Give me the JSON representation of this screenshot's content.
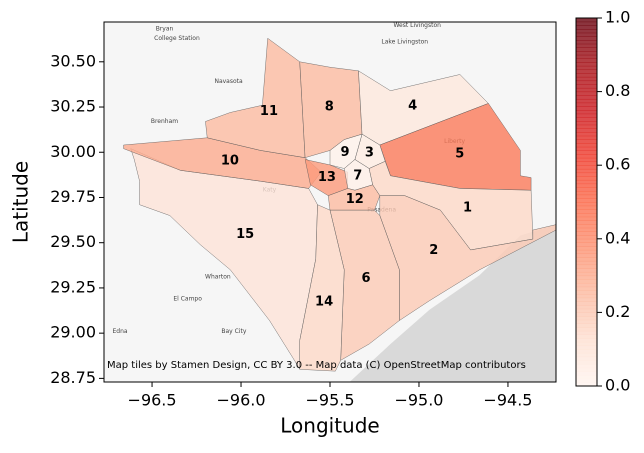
{
  "chart_data": {
    "type": "choropleth",
    "xlabel": "Longitude",
    "ylabel": "Latitude",
    "xlim": [
      -96.77,
      -94.23
    ],
    "ylim": [
      28.73,
      30.72
    ],
    "xticks": [
      {
        "value": -96.5,
        "label": "−96.5"
      },
      {
        "value": -96.0,
        "label": "−96.0"
      },
      {
        "value": -95.5,
        "label": "−95.5"
      },
      {
        "value": -95.0,
        "label": "−95.0"
      },
      {
        "value": -94.5,
        "label": "−94.5"
      }
    ],
    "yticks": [
      {
        "value": 28.75,
        "label": "28.75"
      },
      {
        "value": 29.0,
        "label": "29.00"
      },
      {
        "value": 29.25,
        "label": "29.25"
      },
      {
        "value": 29.5,
        "label": "29.50"
      },
      {
        "value": 29.75,
        "label": "29.75"
      },
      {
        "value": 30.0,
        "label": "30.00"
      },
      {
        "value": 30.25,
        "label": "30.25"
      },
      {
        "value": 30.5,
        "label": "30.50"
      }
    ],
    "colormap": "Reds",
    "clim": [
      0,
      1
    ],
    "cticks": [
      {
        "value": 0,
        "label": "0.0"
      },
      {
        "value": 0.2,
        "label": "0.2"
      },
      {
        "value": 0.4,
        "label": "0.4"
      },
      {
        "value": 0.6,
        "label": "0.6"
      },
      {
        "value": 0.8,
        "label": "0.8"
      },
      {
        "value": 1,
        "label": "1.0"
      }
    ],
    "attribution": "Map tiles by Stamen Design, CC BY 3.0 -- Map data (C) OpenStreetMap contributors",
    "sea": [
      [
        -94.23,
        29.6
      ],
      [
        -94.43,
        29.54
      ],
      [
        -94.66,
        29.32
      ],
      [
        -94.94,
        29.13
      ],
      [
        -95.16,
        28.94
      ],
      [
        -95.39,
        28.73
      ],
      [
        -94.23,
        28.73
      ]
    ],
    "places": [
      {
        "name": "Bryan",
        "lon": -96.43,
        "lat": 30.68
      },
      {
        "name": "College Station",
        "lon": -96.36,
        "lat": 30.63
      },
      {
        "name": "West Livingston",
        "lon": -95.01,
        "lat": 30.7
      },
      {
        "name": "Lake Livingston",
        "lon": -95.08,
        "lat": 30.61
      },
      {
        "name": "Navasota",
        "lon": -96.07,
        "lat": 30.39
      },
      {
        "name": "Brenham",
        "lon": -96.43,
        "lat": 30.17
      },
      {
        "name": "Katy",
        "lon": -95.84,
        "lat": 29.79
      },
      {
        "name": "Pasadena",
        "lon": -95.21,
        "lat": 29.68
      },
      {
        "name": "Wharton",
        "lon": -96.13,
        "lat": 29.31
      },
      {
        "name": "El Campo",
        "lon": -96.3,
        "lat": 29.19
      },
      {
        "name": "Bay City",
        "lon": -96.04,
        "lat": 29.01
      },
      {
        "name": "Edna",
        "lon": -96.68,
        "lat": 29.01
      },
      {
        "name": "Liberty",
        "lon": -94.8,
        "lat": 30.06
      }
    ],
    "regions": [
      {
        "name": "15",
        "value": 0.1,
        "coords": [
          [
            -96.62,
            30.02
          ],
          [
            -96.34,
            29.9
          ],
          [
            -95.89,
            29.84
          ],
          [
            -95.62,
            29.8
          ],
          [
            -95.57,
            29.71
          ],
          [
            -95.58,
            29.41
          ],
          [
            -95.67,
            28.96
          ],
          [
            -95.67,
            28.8
          ],
          [
            -95.7,
            28.85
          ],
          [
            -95.84,
            29.07
          ],
          [
            -96.06,
            29.35
          ],
          [
            -96.23,
            29.49
          ],
          [
            -96.4,
            29.65
          ],
          [
            -96.57,
            29.71
          ],
          [
            -96.57,
            29.84
          ],
          [
            -96.6,
            29.96
          ]
        ]
      },
      {
        "name": "10",
        "value": 0.3,
        "coords": [
          [
            -96.66,
            30.04
          ],
          [
            -96.19,
            30.08
          ],
          [
            -95.89,
            30.01
          ],
          [
            -95.64,
            29.97
          ],
          [
            -95.55,
            29.89
          ],
          [
            -95.62,
            29.8
          ],
          [
            -95.89,
            29.84
          ],
          [
            -96.34,
            29.9
          ],
          [
            -96.66,
            30.02
          ]
        ]
      },
      {
        "name": "11",
        "value": 0.25,
        "coords": [
          [
            -95.85,
            30.63
          ],
          [
            -95.67,
            30.5
          ],
          [
            -95.64,
            29.97
          ],
          [
            -95.89,
            30.01
          ],
          [
            -96.19,
            30.08
          ],
          [
            -96.2,
            30.17
          ],
          [
            -96.06,
            30.22
          ],
          [
            -95.88,
            30.26
          ]
        ]
      },
      {
        "name": "8",
        "value": 0.25,
        "coords": [
          [
            -95.67,
            30.5
          ],
          [
            -95.5,
            30.47
          ],
          [
            -95.34,
            30.45
          ],
          [
            -95.32,
            30.1
          ],
          [
            -95.42,
            30.07
          ],
          [
            -95.5,
            30.01
          ],
          [
            -95.64,
            29.97
          ]
        ]
      },
      {
        "name": "4",
        "value": 0.08,
        "coords": [
          [
            -95.34,
            30.45
          ],
          [
            -95.16,
            30.34
          ],
          [
            -94.77,
            30.43
          ],
          [
            -94.61,
            30.27
          ],
          [
            -95.22,
            30.04
          ],
          [
            -95.32,
            30.1
          ]
        ]
      },
      {
        "name": "5",
        "value": 0.45,
        "coords": [
          [
            -95.22,
            30.04
          ],
          [
            -94.61,
            30.27
          ],
          [
            -94.43,
            30.01
          ],
          [
            -94.43,
            29.87
          ],
          [
            -94.37,
            29.86
          ],
          [
            -94.37,
            29.79
          ],
          [
            -94.77,
            29.8
          ],
          [
            -95.16,
            29.87
          ]
        ]
      },
      {
        "name": "3",
        "value": 0.05,
        "coords": [
          [
            -95.32,
            30.1
          ],
          [
            -95.22,
            30.04
          ],
          [
            -95.19,
            29.95
          ],
          [
            -95.28,
            29.91
          ],
          [
            -95.36,
            29.96
          ]
        ]
      },
      {
        "name": "9",
        "value": 0.02,
        "coords": [
          [
            -95.5,
            30.01
          ],
          [
            -95.42,
            30.07
          ],
          [
            -95.32,
            30.1
          ],
          [
            -95.36,
            29.96
          ],
          [
            -95.42,
            29.91
          ],
          [
            -95.5,
            29.93
          ]
        ]
      },
      {
        "name": "13",
        "value": 0.35,
        "coords": [
          [
            -95.64,
            29.96
          ],
          [
            -95.5,
            29.93
          ],
          [
            -95.4,
            29.89
          ],
          [
            -95.4,
            29.8
          ],
          [
            -95.51,
            29.76
          ],
          [
            -95.61,
            29.82
          ]
        ]
      },
      {
        "name": "7",
        "value": 0.03,
        "coords": [
          [
            -95.42,
            29.91
          ],
          [
            -95.36,
            29.96
          ],
          [
            -95.28,
            29.91
          ],
          [
            -95.26,
            29.82
          ],
          [
            -95.36,
            29.79
          ],
          [
            -95.4,
            29.8
          ]
        ]
      },
      {
        "name": "12",
        "value": 0.25,
        "coords": [
          [
            -95.51,
            29.76
          ],
          [
            -95.4,
            29.8
          ],
          [
            -95.36,
            29.79
          ],
          [
            -95.26,
            29.82
          ],
          [
            -95.22,
            29.76
          ],
          [
            -95.25,
            29.68
          ],
          [
            -95.5,
            29.68
          ]
        ]
      },
      {
        "name": "1",
        "value": 0.15,
        "coords": [
          [
            -95.28,
            29.91
          ],
          [
            -95.19,
            29.95
          ],
          [
            -95.16,
            29.87
          ],
          [
            -94.77,
            29.8
          ],
          [
            -94.37,
            29.79
          ],
          [
            -94.36,
            29.52
          ],
          [
            -94.71,
            29.46
          ],
          [
            -94.88,
            29.68
          ],
          [
            -95.08,
            29.76
          ],
          [
            -95.22,
            29.76
          ],
          [
            -95.26,
            29.82
          ]
        ]
      },
      {
        "name": "2",
        "value": 0.2,
        "coords": [
          [
            -95.22,
            29.76
          ],
          [
            -95.08,
            29.76
          ],
          [
            -94.88,
            29.68
          ],
          [
            -94.71,
            29.46
          ],
          [
            -94.36,
            29.52
          ],
          [
            -94.36,
            29.57
          ],
          [
            -94.23,
            29.6
          ],
          [
            -94.23,
            29.57
          ],
          [
            -94.66,
            29.35
          ],
          [
            -94.94,
            29.18
          ],
          [
            -95.11,
            29.07
          ],
          [
            -95.11,
            29.35
          ],
          [
            -95.22,
            29.65
          ]
        ]
      },
      {
        "name": "6",
        "value": 0.2,
        "coords": [
          [
            -95.25,
            29.68
          ],
          [
            -95.22,
            29.65
          ],
          [
            -95.11,
            29.35
          ],
          [
            -95.11,
            29.07
          ],
          [
            -95.28,
            28.94
          ],
          [
            -95.44,
            28.85
          ],
          [
            -95.42,
            29.35
          ],
          [
            -95.5,
            29.68
          ]
        ]
      },
      {
        "name": "14",
        "value": 0.15,
        "coords": [
          [
            -95.57,
            29.71
          ],
          [
            -95.5,
            29.68
          ],
          [
            -95.42,
            29.35
          ],
          [
            -95.44,
            28.85
          ],
          [
            -95.47,
            28.79
          ],
          [
            -95.67,
            28.8
          ],
          [
            -95.67,
            28.96
          ],
          [
            -95.58,
            29.41
          ]
        ]
      }
    ]
  }
}
